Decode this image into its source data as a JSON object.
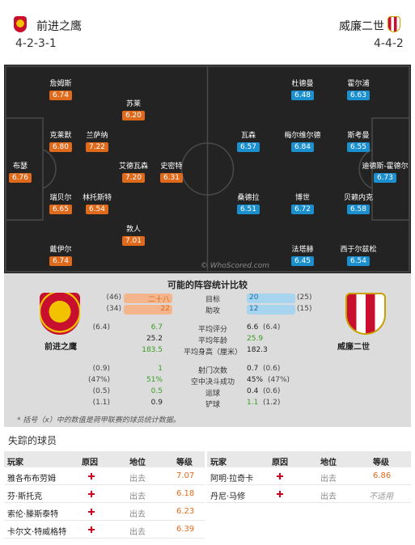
{
  "teams": {
    "home": {
      "name": "前进之鹰",
      "formation": "4-2-3-1"
    },
    "away": {
      "name": "威廉二世",
      "formation": "4-4-2"
    }
  },
  "pitch": {
    "home_players": [
      {
        "name": "詹姆斯",
        "rating": "6.74"
      },
      {
        "name": "苏莱",
        "rating": "6.20"
      },
      {
        "name": "克莱默",
        "rating": "6.80"
      },
      {
        "name": "兰萨纳",
        "rating": "7.22"
      },
      {
        "name": "布瑟",
        "rating": "6.76"
      },
      {
        "name": "艾德瓦森",
        "rating": "7.20"
      },
      {
        "name": "史密特",
        "rating": "6.31"
      },
      {
        "name": "瑞贝尔",
        "rating": "6.65"
      },
      {
        "name": "林托斯特",
        "rating": "6.54"
      },
      {
        "name": "敦人",
        "rating": "7.01"
      },
      {
        "name": "戴伊尔",
        "rating": "6.74"
      }
    ],
    "away_players": [
      {
        "name": "杜德曼",
        "rating": "6.48"
      },
      {
        "name": "霍尔浦",
        "rating": "6.63"
      },
      {
        "name": "瓦森",
        "rating": "6.57"
      },
      {
        "name": "梅尔维尔德",
        "rating": "6.84"
      },
      {
        "name": "斯考曼",
        "rating": "6.55"
      },
      {
        "name": "迪德斯-霍德尔",
        "rating": "6.73"
      },
      {
        "name": "桑德拉",
        "rating": "6.51"
      },
      {
        "name": "博世",
        "rating": "6.72"
      },
      {
        "name": "贝赖内克",
        "rating": "6.58"
      },
      {
        "name": "法塔赫",
        "rating": "6.45"
      },
      {
        "name": "西于尔兹松",
        "rating": "6.54"
      }
    ],
    "watermark": "© WhoScored.com"
  },
  "compare": {
    "title": "可能的阵容统计比较",
    "home_name": "前进之鹰",
    "away_name": "威廉二世",
    "bar_rows": [
      {
        "label": "目标",
        "home": "二十八",
        "home_avg": "(46)",
        "away": "20",
        "away_avg": "(25)"
      },
      {
        "label": "助攻",
        "home": "22",
        "home_avg": "(34)",
        "away": "12",
        "away_avg": "(15)"
      }
    ],
    "rows": [
      {
        "label": "平均评分",
        "home": "6.7",
        "home_avg": "(6.4)",
        "away": "6.6",
        "away_avg": "(6.4)"
      },
      {
        "label": "平均年龄",
        "home": "25.2",
        "home_avg": "",
        "away": "25.9",
        "away_avg": ""
      },
      {
        "label": "平均身高（厘米）",
        "home": "183.5",
        "home_avg": "",
        "away": "182.3",
        "away_avg": ""
      },
      {
        "label": "射门次数",
        "home": "1",
        "home_avg": "(0.9)",
        "away": "0.7",
        "away_avg": "(0.6)"
      },
      {
        "label": "空中决斗成功",
        "home": "51%",
        "home_avg": "(47%)",
        "away": "45%",
        "away_avg": "(47%)"
      },
      {
        "label": "运球",
        "home": "0.5",
        "home_avg": "(0.5)",
        "away": "0.4",
        "away_avg": "(0.6)"
      },
      {
        "label": "铲球",
        "home": "0.9",
        "home_avg": "(1.1)",
        "away": "1.1",
        "away_avg": "(1.2)"
      }
    ],
    "note": "* 括号（x）中的数值是荷甲联赛的球员统计数据。"
  },
  "missing": {
    "title": "失踪的球员",
    "headers": {
      "player": "玩家",
      "reason": "原因",
      "status": "地位",
      "grade": "等级"
    },
    "home": [
      {
        "player": "雅各布布劳姆",
        "status": "出去",
        "grade": "7.07"
      },
      {
        "player": "芬·斯托克",
        "status": "出去",
        "grade": "6.18"
      },
      {
        "player": "索伦·滕斯泰特",
        "status": "出去",
        "grade": "6.23"
      },
      {
        "player": "卡尔文·特威格特",
        "status": "出去",
        "grade": "6.39"
      }
    ],
    "away": [
      {
        "player": "阿明·拉奇卡",
        "status": "出去",
        "grade": "6.86"
      },
      {
        "player": "丹尼·马修",
        "status": "出去",
        "grade": "不适用"
      }
    ]
  },
  "colors": {
    "home_rating": "#e06a1c",
    "away_rating": "#1c8fcf",
    "injury": "#d0021b"
  }
}
